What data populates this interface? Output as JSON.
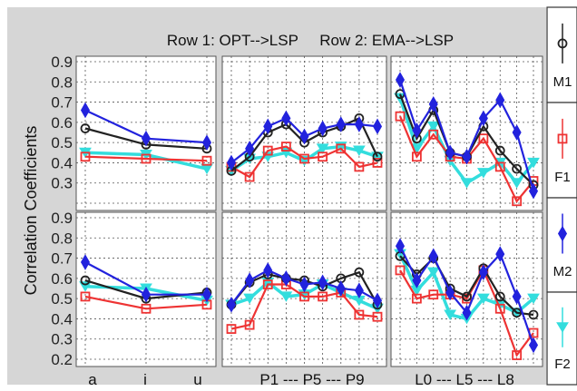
{
  "chart_data": {
    "type": "line",
    "title": "Row 1: OPT-->LSP     Row 2: EMA-->LSP",
    "ylabel": "Correlation Coefficients",
    "ylim": [
      0.2,
      0.9
    ],
    "grid": true,
    "legend_placement": "right",
    "legend": [
      {
        "name": "M1",
        "color": "#222222",
        "marker": "circle"
      },
      {
        "name": "F1",
        "color": "#ee3333",
        "marker": "square"
      },
      {
        "name": "M2",
        "color": "#2222dd",
        "marker": "diamond"
      },
      {
        "name": "F2",
        "color": "#33dddd",
        "marker": "triangle"
      }
    ],
    "columns": [
      {
        "xlabel": "a        i        u",
        "tick_labels": [
          "a",
          "i",
          "u"
        ]
      },
      {
        "xlabel": "P1 --- P5 --- P9",
        "tick_labels": [
          "P1 --- P5 --- P9"
        ]
      },
      {
        "xlabel": "L0 --- L5 --- L8",
        "tick_labels": [
          "L0 --- L5 --- L8"
        ]
      }
    ],
    "yticks_row1": [
      "0.9",
      "0.8",
      "0.7",
      "0.6",
      "0.5",
      "0.4",
      "0.3"
    ],
    "yticks_row2": [
      "0.9",
      "0.8",
      "0.7",
      "0.6",
      "0.5",
      "0.4",
      "0.3",
      "0.2"
    ],
    "panels": [
      {
        "row": 1,
        "col": 1,
        "x": [
          1,
          2,
          3
        ],
        "series": {
          "M1": [
            0.57,
            0.49,
            0.47
          ],
          "F1": [
            0.43,
            0.42,
            0.41
          ],
          "M2": [
            0.66,
            0.52,
            0.5
          ],
          "F2": [
            0.45,
            0.44,
            0.37
          ]
        }
      },
      {
        "row": 1,
        "col": 2,
        "x": [
          1,
          2,
          3,
          4,
          5,
          6,
          7,
          8,
          9
        ],
        "series": {
          "M1": [
            0.36,
            0.43,
            0.55,
            0.59,
            0.5,
            0.55,
            0.58,
            0.62,
            0.43
          ],
          "F1": [
            0.38,
            0.33,
            0.46,
            0.48,
            0.42,
            0.43,
            0.47,
            0.38,
            0.4
          ],
          "M2": [
            0.4,
            0.47,
            0.58,
            0.62,
            0.53,
            0.57,
            0.59,
            0.59,
            0.58
          ],
          "F2": [
            0.36,
            0.42,
            0.43,
            0.45,
            0.41,
            0.47,
            0.48,
            0.46,
            0.43
          ]
        }
      },
      {
        "row": 1,
        "col": 3,
        "x": [
          0,
          1,
          2,
          3,
          4,
          5,
          6,
          7,
          8
        ],
        "series": {
          "M1": [
            0.74,
            0.52,
            0.66,
            0.45,
            0.43,
            0.58,
            0.46,
            0.37,
            0.29
          ],
          "F1": [
            0.63,
            0.43,
            0.54,
            0.43,
            0.42,
            0.52,
            0.38,
            0.21,
            0.31
          ],
          "M2": [
            0.81,
            0.56,
            0.69,
            0.45,
            0.43,
            0.62,
            0.71,
            0.55,
            0.26
          ],
          "F2": [
            0.72,
            0.47,
            0.58,
            0.41,
            0.3,
            0.35,
            0.4,
            0.3,
            0.4
          ]
        }
      },
      {
        "row": 2,
        "col": 1,
        "x": [
          1,
          2,
          3
        ],
        "series": {
          "M1": [
            0.59,
            0.5,
            0.53
          ],
          "F1": [
            0.51,
            0.45,
            0.47
          ],
          "M2": [
            0.68,
            0.52,
            0.52
          ],
          "F2": [
            0.56,
            0.55,
            0.49
          ]
        }
      },
      {
        "row": 2,
        "col": 2,
        "x": [
          1,
          2,
          3,
          4,
          5,
          6,
          7,
          8,
          9
        ],
        "series": {
          "M1": [
            0.47,
            0.58,
            0.62,
            0.6,
            0.59,
            0.56,
            0.6,
            0.63,
            0.47
          ],
          "F1": [
            0.35,
            0.37,
            0.57,
            0.57,
            0.51,
            0.51,
            0.53,
            0.42,
            0.41
          ],
          "M2": [
            0.47,
            0.59,
            0.64,
            0.6,
            0.57,
            0.58,
            0.55,
            0.54,
            0.49
          ],
          "F2": [
            0.47,
            0.5,
            0.58,
            0.51,
            0.52,
            0.57,
            0.53,
            0.49,
            0.45
          ]
        }
      },
      {
        "row": 2,
        "col": 3,
        "x": [
          0,
          1,
          2,
          3,
          4,
          5,
          6,
          7,
          8
        ],
        "series": {
          "M1": [
            0.71,
            0.62,
            0.7,
            0.55,
            0.51,
            0.65,
            0.51,
            0.43,
            0.42
          ],
          "F1": [
            0.64,
            0.5,
            0.52,
            0.52,
            0.5,
            0.64,
            0.45,
            0.22,
            0.33
          ],
          "M2": [
            0.76,
            0.59,
            0.71,
            0.53,
            0.43,
            0.63,
            0.72,
            0.51,
            0.27
          ],
          "F2": [
            0.72,
            0.54,
            0.63,
            0.42,
            0.4,
            0.5,
            0.47,
            0.43,
            0.5
          ]
        }
      }
    ]
  }
}
